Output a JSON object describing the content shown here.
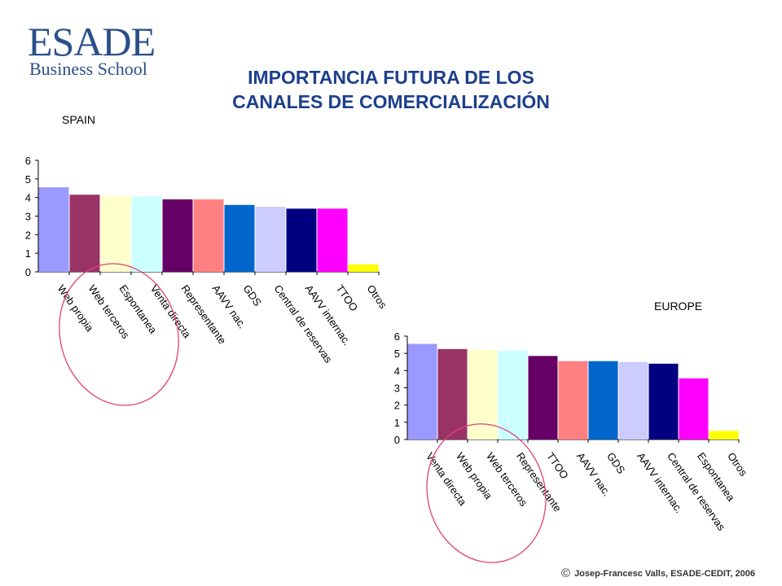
{
  "logo": {
    "main": "ESADE",
    "sub": "Business School"
  },
  "title": {
    "line1": "IMPORTANCIA FUTURA DE LOS",
    "line2": "CANALES DE COMERCIALIZACIÓN"
  },
  "copyright": {
    "symbol": "©",
    "text": "Josep-Francesc Valls, ESADE-CEDIT, 2006"
  },
  "colors": {
    "bars": [
      "#9999ff",
      "#993366",
      "#ffffcc",
      "#ccffff",
      "#660066",
      "#ff8080",
      "#0066cc",
      "#ccccff",
      "#000080",
      "#ff00ff",
      "#ffff00"
    ],
    "highlight_circle": "#e0407a",
    "axis": "#000000"
  },
  "chart_data": [
    {
      "type": "bar",
      "label": "SPAIN",
      "categories": [
        "Web propia",
        "Web terceros",
        "Espontanea",
        "Venta directa",
        "Representante",
        "AAVV nac.",
        "GDS",
        "Central de reservas",
        "AAVV internac.",
        "TTOO",
        "Otros"
      ],
      "values": [
        4.55,
        4.15,
        4.1,
        4.05,
        3.9,
        3.9,
        3.6,
        3.5,
        3.4,
        3.4,
        0.4
      ],
      "ylim": [
        0,
        6
      ],
      "yticks": [
        "0",
        "1",
        "2",
        "3",
        "4",
        "5",
        "6"
      ],
      "grid": false,
      "legend": "none",
      "highlighted_categories": [
        "Web propia",
        "Web terceros",
        "Espontanea"
      ]
    },
    {
      "type": "bar",
      "label": "EUROPE",
      "categories": [
        "Venta directa",
        "Web propia",
        "Web terceros",
        "Representante",
        "TTOO",
        "AAVV nac.",
        "GDS",
        "AAVV internac.",
        "Central de reservas",
        "Espontanea",
        "Otros"
      ],
      "values": [
        5.55,
        5.25,
        5.2,
        5.15,
        4.85,
        4.55,
        4.55,
        4.5,
        4.4,
        3.55,
        0.5
      ],
      "ylim": [
        0,
        6
      ],
      "yticks": [
        "0",
        "1",
        "2",
        "3",
        "4",
        "5",
        "6"
      ],
      "grid": false,
      "legend": "none",
      "highlighted_categories": [
        "Venta directa",
        "Web propia",
        "Web terceros"
      ]
    }
  ]
}
